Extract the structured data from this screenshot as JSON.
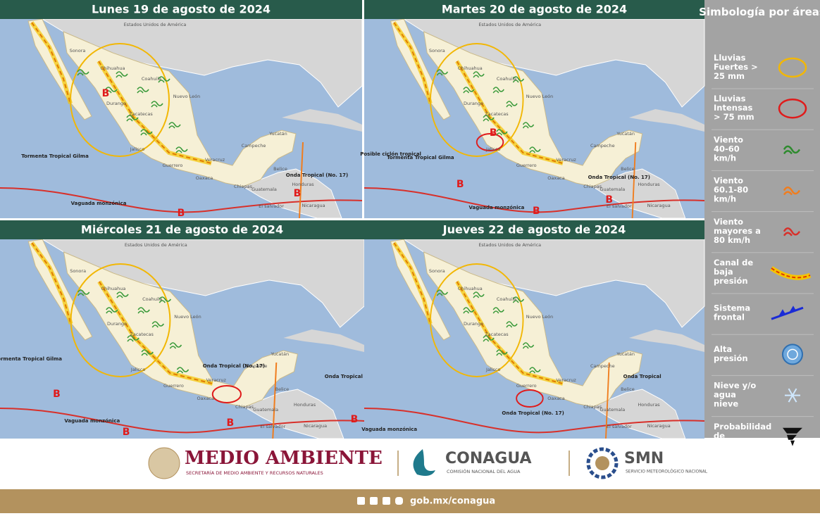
{
  "panels": [
    {
      "title": "Lunes 19 de agosto de 2024",
      "annotations": [
        "Tormenta Tropical Gilma",
        "Vaguada monzónica",
        "Onda Tropical (No. 17)",
        "B",
        "B",
        "B"
      ]
    },
    {
      "title": "Martes 20 de agosto de 2024",
      "annotations": [
        "Posible ciclón tropical",
        "Tormenta Tropical Gilma",
        "Vaguada monzónica",
        "Onda Tropical (No. 17)",
        "B",
        "B",
        "B",
        "B"
      ]
    },
    {
      "title": "Miércoles 21 de agosto de 2024",
      "annotations": [
        "Tormenta Tropical Gilma",
        "Vaguada monzónica",
        "Onda Tropical (No. 17)",
        "Onda Tropical",
        "B",
        "B",
        "B",
        "B"
      ]
    },
    {
      "title": "Jueves 22 de agosto de 2024",
      "annotations": [
        "Vaguada monzónica",
        "Onda Tropical (No. 17)",
        "Onda Tropical"
      ]
    }
  ],
  "map_labels": [
    "Estados Unidos de América",
    "Sonora",
    "Chihuahua",
    "Coahuila",
    "Nuevo León",
    "Durango",
    "Zacatecas",
    "Jalisco",
    "Guerrero",
    "Oaxaca",
    "Veracruz",
    "Campeche",
    "Yucatán",
    "Chiapas",
    "Belice",
    "Guatemala",
    "Honduras",
    "El salvador",
    "Nicaragua"
  ],
  "legend": {
    "title": "Simbología por áreas",
    "items": [
      "Lluvias Fuertes > 25 mm",
      "Lluvias Intensas > 75 mm",
      "Viento 40-60 km/h",
      "Viento 60.1-80 km/h",
      "Viento mayores a 80 km/h",
      "Canal de baja presión",
      "Sistema frontal",
      "Alta presión",
      "Nieve y/o agua nieve",
      "Probabilidad de tornados"
    ]
  },
  "footer": {
    "brand1": "MEDIO AMBIENTE",
    "brand1_sub": "SECRETARÍA DE MEDIO AMBIENTE Y RECURSOS NATURALES",
    "brand2": "CONAGUA",
    "brand2_sub": "COMISIÓN NACIONAL DEL AGUA",
    "brand3": "SMN",
    "brand3_sub": "SERVICIO METEOROLÓGICO NACIONAL",
    "url": "gob.mx/conagua"
  }
}
